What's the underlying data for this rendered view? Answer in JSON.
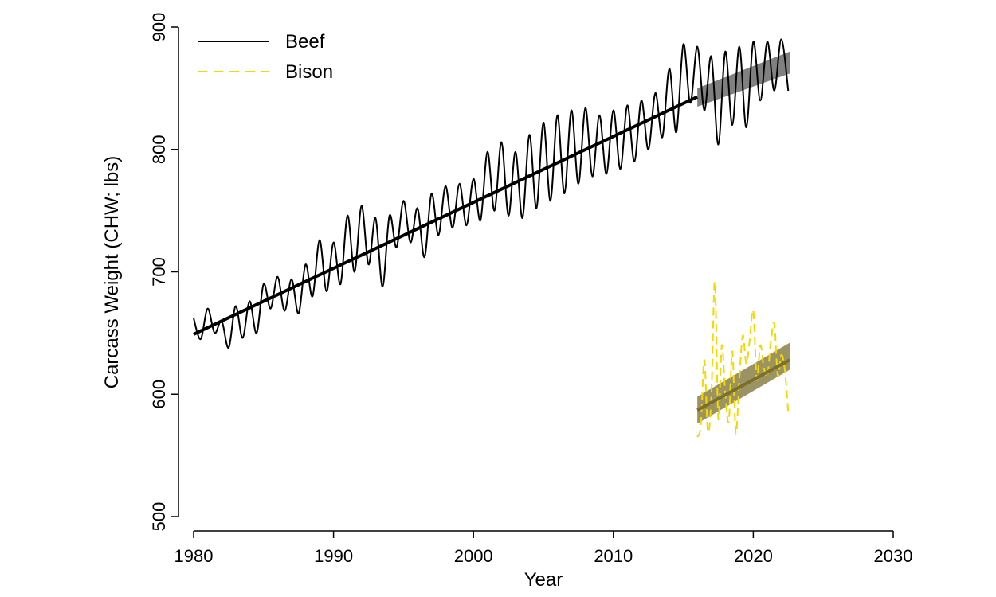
{
  "chart_data": {
    "type": "line",
    "title": "",
    "xlabel": "Year",
    "ylabel": "Carcass Weight (CHW; lbs)",
    "xlim": [
      1980,
      2030
    ],
    "ylim": [
      500,
      900
    ],
    "x_ticks": [
      1980,
      1990,
      2000,
      2010,
      2020,
      2030
    ],
    "y_ticks": [
      500,
      600,
      700,
      800,
      900
    ],
    "grid": false,
    "legend_position": "top-left",
    "series": [
      {
        "name": "Beef",
        "style": "solid",
        "color": "#000000",
        "x": [
          1980.0,
          1980.5,
          1981.0,
          1981.5,
          1982.0,
          1982.5,
          1983.0,
          1983.5,
          1984.0,
          1984.5,
          1985.0,
          1985.5,
          1986.0,
          1986.5,
          1987.0,
          1987.5,
          1988.0,
          1988.5,
          1989.0,
          1989.5,
          1990.0,
          1990.5,
          1991.0,
          1991.5,
          1992.0,
          1992.5,
          1993.0,
          1993.5,
          1994.0,
          1994.5,
          1995.0,
          1995.5,
          1996.0,
          1996.5,
          1997.0,
          1997.5,
          1998.0,
          1998.5,
          1999.0,
          1999.5,
          2000.0,
          2000.5,
          2001.0,
          2001.5,
          2002.0,
          2002.5,
          2003.0,
          2003.5,
          2004.0,
          2004.5,
          2005.0,
          2005.5,
          2006.0,
          2006.5,
          2007.0,
          2007.5,
          2008.0,
          2008.5,
          2009.0,
          2009.5,
          2010.0,
          2010.5,
          2011.0,
          2011.5,
          2012.0,
          2012.5,
          2013.0,
          2013.5,
          2014.0,
          2014.5,
          2015.0,
          2015.5,
          2016.0,
          2016.5,
          2017.0,
          2017.5,
          2018.0,
          2018.5,
          2019.0,
          2019.5,
          2020.0,
          2020.5,
          2021.0,
          2021.5,
          2022.0,
          2022.5
        ],
        "values": [
          662,
          645,
          670,
          650,
          660,
          638,
          672,
          646,
          676,
          650,
          690,
          670,
          696,
          668,
          694,
          666,
          706,
          680,
          726,
          684,
          724,
          690,
          746,
          700,
          754,
          706,
          744,
          688,
          746,
          720,
          758,
          724,
          752,
          712,
          764,
          730,
          770,
          736,
          772,
          738,
          776,
          742,
          798,
          750,
          806,
          746,
          798,
          744,
          812,
          752,
          822,
          758,
          828,
          764,
          832,
          772,
          834,
          778,
          828,
          780,
          832,
          784,
          836,
          790,
          840,
          800,
          846,
          810,
          866,
          814,
          886,
          838,
          884,
          832,
          876,
          804,
          880,
          820,
          884,
          818,
          888,
          840,
          888,
          848,
          890,
          848
        ]
      },
      {
        "name": "Bison",
        "style": "dashed",
        "color": "#f5d800",
        "x": [
          2016.0,
          2016.25,
          2016.5,
          2016.75,
          2017.0,
          2017.25,
          2017.5,
          2017.75,
          2018.0,
          2018.25,
          2018.5,
          2018.75,
          2019.0,
          2019.25,
          2019.5,
          2019.75,
          2020.0,
          2020.25,
          2020.5,
          2020.75,
          2021.0,
          2021.25,
          2021.5,
          2021.75,
          2022.0,
          2022.25,
          2022.5
        ],
        "values": [
          565,
          575,
          628,
          570,
          598,
          692,
          580,
          640,
          600,
          578,
          635,
          568,
          612,
          648,
          625,
          645,
          668,
          612,
          640,
          622,
          615,
          642,
          658,
          615,
          632,
          620,
          585
        ]
      }
    ],
    "trend_lines": [
      {
        "name": "Beef",
        "x": [
          1980,
          2016
        ],
        "y": [
          649,
          843
        ],
        "color": "#000000"
      },
      {
        "name": "Bison",
        "x": [
          2016,
          2022.6
        ],
        "y": [
          587,
          628
        ],
        "color": "#7a6f2c"
      }
    ],
    "confidence_bands": [
      {
        "name": "Beef",
        "x": [
          2016,
          2022.6
        ],
        "lower": [
          835,
          862
        ],
        "upper": [
          850,
          880
        ],
        "color": "#555555"
      },
      {
        "name": "Bison",
        "x": [
          2016,
          2022.6
        ],
        "lower": [
          576,
          620
        ],
        "upper": [
          598,
          642
        ],
        "color": "#7a6f2c"
      }
    ]
  }
}
